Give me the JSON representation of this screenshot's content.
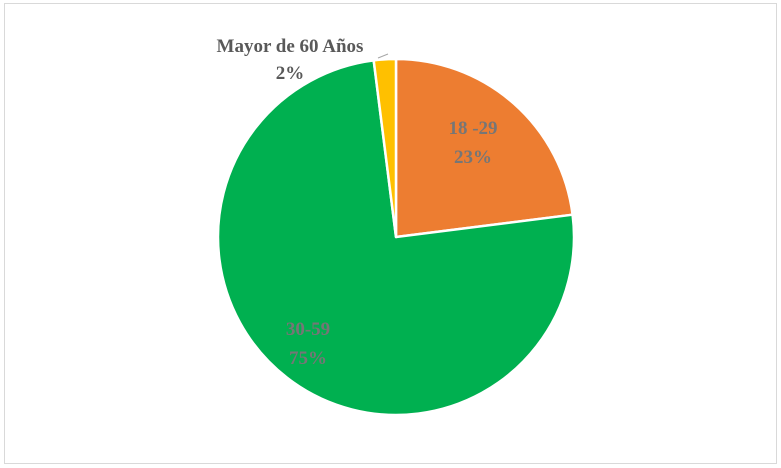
{
  "chart_data": {
    "type": "pie",
    "slices": [
      {
        "category": "18 -29",
        "percent_label": "23%",
        "value": 23,
        "color": "#ED7D31"
      },
      {
        "category": "30-59",
        "percent_label": "75%",
        "value": 75,
        "color": "#00B050"
      },
      {
        "category": "Mayor de 60 Años",
        "percent_label": "2%",
        "value": 2,
        "color": "#FFC000"
      }
    ],
    "start_angle_deg": 0,
    "direction": "clockwise",
    "legend": "none",
    "data_labels": "category and percent",
    "slice_border_color": "#ffffff"
  }
}
